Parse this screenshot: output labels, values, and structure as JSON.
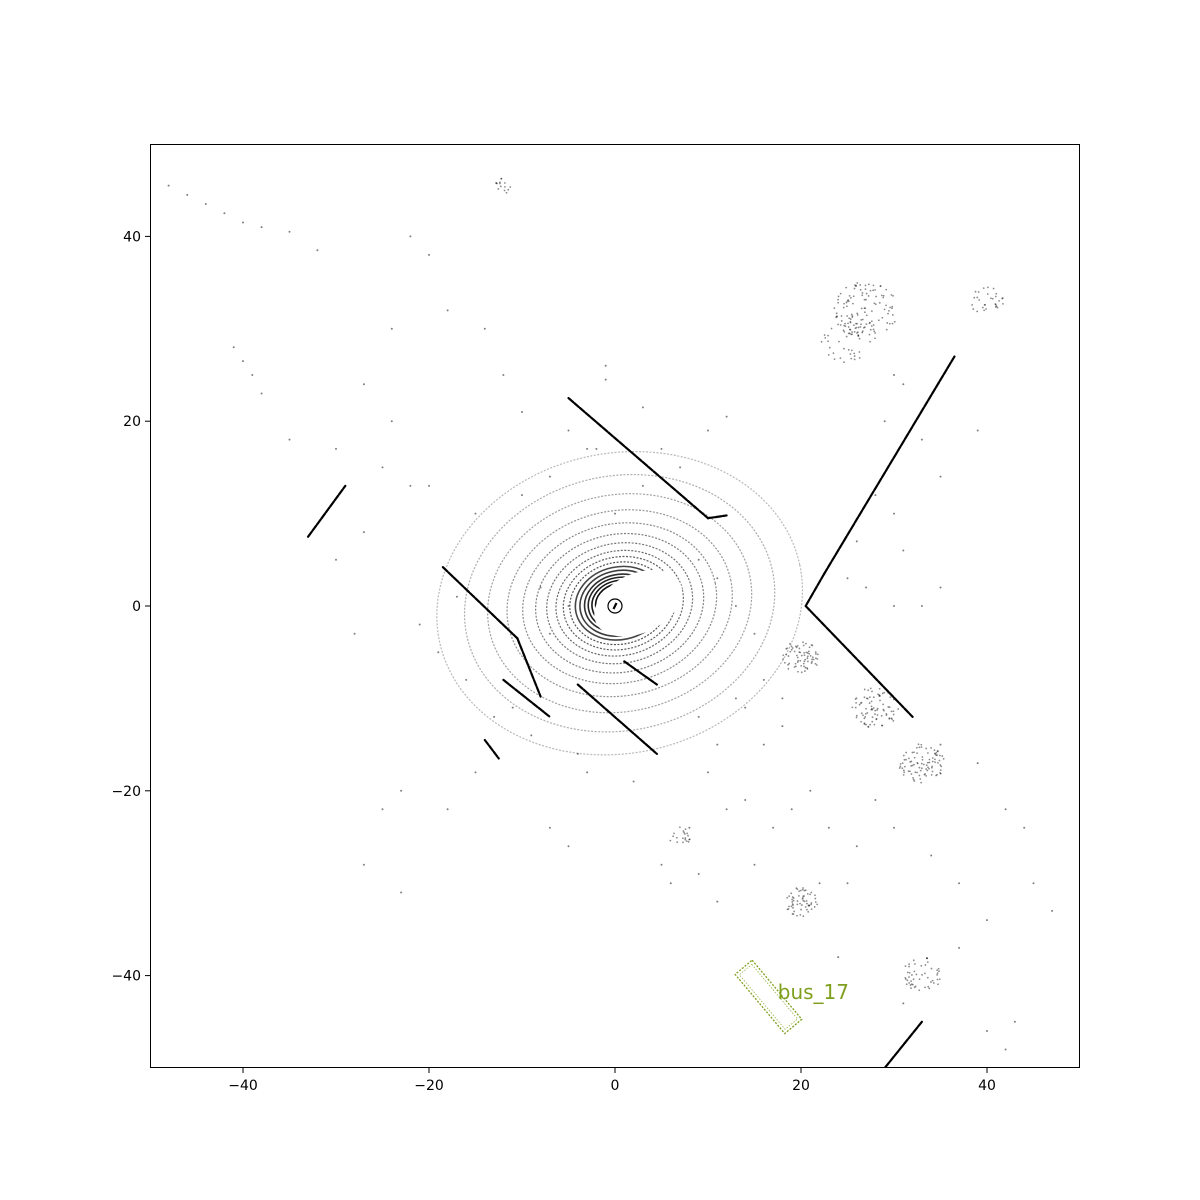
{
  "colors": {
    "points": "#000000",
    "box": "#7f9f1f",
    "ego": "#000000"
  },
  "chart_data": {
    "type": "scatter",
    "title": "",
    "xlabel": "",
    "ylabel": "",
    "xlim": [
      -50,
      50
    ],
    "ylim": [
      -50,
      50
    ],
    "grid": false,
    "x_ticks": [
      -40,
      -20,
      0,
      20,
      40
    ],
    "y_ticks": [
      -40,
      -20,
      0,
      20,
      40
    ],
    "x_tick_labels": [
      "−40",
      "−20",
      "0",
      "20",
      "40"
    ],
    "y_tick_labels": [
      "−40",
      "−20",
      "0",
      "20",
      "40"
    ],
    "ego_vehicle": {
      "x": 0,
      "y": 0
    },
    "lidar_rings": {
      "center": [
        0.5,
        0.3
      ],
      "radii": [
        2.6,
        3.0,
        3.4,
        3.8,
        4.3,
        4.8,
        5.4,
        6.1,
        6.9,
        7.9,
        9.1,
        10.5,
        12.2,
        14.3,
        16.8,
        19.8
      ],
      "aspect": 0.82,
      "rotation_deg": -12
    },
    "wall_segments": [
      {
        "from": [
          -5,
          22.5
        ],
        "to": [
          10,
          9.5
        ]
      },
      {
        "from": [
          10,
          9.5
        ],
        "to": [
          12,
          9.8
        ]
      },
      {
        "from": [
          -18.5,
          4.2
        ],
        "to": [
          -10.5,
          -3.5
        ]
      },
      {
        "from": [
          -10.5,
          -3.5
        ],
        "to": [
          -8,
          -9.8
        ]
      },
      {
        "from": [
          -12,
          -8
        ],
        "to": [
          -7,
          -12
        ]
      },
      {
        "from": [
          -4,
          -8.5
        ],
        "to": [
          4.5,
          -16
        ]
      },
      {
        "from": [
          1,
          -6
        ],
        "to": [
          4.5,
          -8.5
        ]
      },
      {
        "from": [
          36.5,
          27
        ],
        "to": [
          22.5,
          3.5
        ]
      },
      {
        "from": [
          22.5,
          3.5
        ],
        "to": [
          20.5,
          0
        ]
      },
      {
        "from": [
          20.5,
          0
        ],
        "to": [
          32,
          -12
        ]
      },
      {
        "from": [
          -33,
          7.5
        ],
        "to": [
          -29,
          13
        ]
      },
      {
        "from": [
          33,
          -45
        ],
        "to": [
          29,
          -50
        ]
      },
      {
        "from": [
          -14,
          -14.5
        ],
        "to": [
          -12.5,
          -16.5
        ]
      }
    ],
    "point_clusters": [
      {
        "x": 27,
        "y": 32,
        "spread": 3.5,
        "n": 120
      },
      {
        "x": 25,
        "y": 29,
        "spread": 3,
        "n": 40
      },
      {
        "x": 20,
        "y": -5.5,
        "spread": 2.0,
        "n": 70
      },
      {
        "x": 28,
        "y": -11,
        "spread": 2.5,
        "n": 80
      },
      {
        "x": 33,
        "y": -17,
        "spread": 2.5,
        "n": 90
      },
      {
        "x": 20,
        "y": -32,
        "spread": 1.8,
        "n": 60
      },
      {
        "x": 33,
        "y": -40,
        "spread": 2.2,
        "n": 50
      },
      {
        "x": 40,
        "y": 33,
        "spread": 1.8,
        "n": 30
      },
      {
        "x": -12,
        "y": 45.5,
        "spread": 1.0,
        "n": 15
      },
      {
        "x": 7,
        "y": -25,
        "spread": 1.2,
        "n": 20
      }
    ],
    "scattered_points": [
      [
        -48,
        45.5
      ],
      [
        -46,
        44.5
      ],
      [
        -44,
        43.5
      ],
      [
        -42,
        42.5
      ],
      [
        -40,
        41.5
      ],
      [
        -38,
        41
      ],
      [
        -35,
        40.5
      ],
      [
        -32,
        38.5
      ],
      [
        -41,
        28
      ],
      [
        -40,
        26.5
      ],
      [
        -39,
        25
      ],
      [
        -38,
        23
      ],
      [
        -35,
        18
      ],
      [
        -30,
        17
      ],
      [
        -25,
        15
      ],
      [
        -22,
        13
      ],
      [
        -27,
        8
      ],
      [
        -30,
        5
      ],
      [
        -28,
        -3
      ],
      [
        -23,
        -20
      ],
      [
        -25,
        -22
      ],
      [
        -27,
        -28
      ],
      [
        -23,
        -31
      ],
      [
        -18,
        -22
      ],
      [
        -15,
        -18
      ],
      [
        -13,
        -12
      ],
      [
        -7,
        -24
      ],
      [
        -5,
        -26
      ],
      [
        -3,
        -18
      ],
      [
        2,
        -19
      ],
      [
        5,
        -28
      ],
      [
        8,
        -24
      ],
      [
        10,
        -18
      ],
      [
        12,
        -22
      ],
      [
        14,
        -21
      ],
      [
        16,
        -15
      ],
      [
        18,
        -13
      ],
      [
        21,
        -20
      ],
      [
        23,
        -24
      ],
      [
        25,
        -30
      ],
      [
        24,
        -38
      ],
      [
        31,
        -43
      ],
      [
        37,
        -37
      ],
      [
        40,
        -46
      ],
      [
        42,
        -48
      ],
      [
        45,
        -30
      ],
      [
        47,
        -33
      ],
      [
        44,
        -24
      ],
      [
        42,
        -22
      ],
      [
        39,
        -17
      ],
      [
        35,
        -15
      ],
      [
        30,
        10
      ],
      [
        28,
        12
      ],
      [
        26,
        7
      ],
      [
        25,
        3
      ],
      [
        27,
        2
      ],
      [
        30,
        0
      ],
      [
        33,
        0
      ],
      [
        35,
        2
      ],
      [
        31,
        6
      ],
      [
        35,
        14
      ],
      [
        33,
        18
      ],
      [
        39,
        19
      ],
      [
        30,
        25
      ],
      [
        31,
        24
      ],
      [
        29,
        20
      ],
      [
        12,
        20.5
      ],
      [
        10,
        19
      ],
      [
        7,
        15
      ],
      [
        3,
        13
      ],
      [
        0,
        10
      ],
      [
        -3,
        17
      ],
      [
        -5,
        19
      ],
      [
        -10,
        21
      ],
      [
        -12,
        25
      ],
      [
        -14,
        30
      ],
      [
        -18,
        32
      ],
      [
        -22,
        40
      ],
      [
        -20,
        38
      ],
      [
        -24,
        30
      ],
      [
        -27,
        24
      ],
      [
        -24,
        20
      ],
      [
        -20,
        13
      ],
      [
        -15,
        10
      ],
      [
        -8,
        2
      ],
      [
        -7,
        -3
      ],
      [
        -5,
        0
      ],
      [
        9,
        5
      ],
      [
        11,
        3
      ],
      [
        13,
        0
      ],
      [
        15,
        -3
      ],
      [
        16,
        -8
      ],
      [
        18,
        -10
      ],
      [
        14,
        -11
      ],
      [
        13,
        -10
      ],
      [
        11,
        -15
      ],
      [
        9,
        -12
      ],
      [
        -1,
        24.5
      ],
      [
        -1,
        26
      ],
      [
        3,
        21.5
      ],
      [
        5,
        17
      ],
      [
        -2,
        17
      ],
      [
        -7,
        14
      ],
      [
        -10,
        12
      ],
      [
        -17,
        1
      ],
      [
        -21,
        -2
      ],
      [
        -19,
        -5
      ],
      [
        -16,
        -8
      ],
      [
        -11,
        -11
      ],
      [
        -9,
        -14
      ],
      [
        -4,
        -16
      ],
      [
        6,
        -30
      ],
      [
        9,
        -29
      ],
      [
        11,
        -32
      ],
      [
        15,
        -28
      ],
      [
        17,
        -24
      ],
      [
        19,
        -22
      ],
      [
        22,
        -30
      ],
      [
        26,
        -26
      ],
      [
        28,
        -21
      ],
      [
        30,
        -24
      ],
      [
        34,
        -27
      ],
      [
        37,
        -30
      ],
      [
        40,
        -34
      ],
      [
        43,
        -45
      ]
    ],
    "annotations": [
      {
        "label": "bus_17",
        "type": "bounding_box",
        "center": [
          16.5,
          -42.3
        ],
        "length": 8.3,
        "width": 2.4,
        "heading_deg": -50,
        "label_pos": [
          17.5,
          -41.8
        ]
      }
    ]
  }
}
